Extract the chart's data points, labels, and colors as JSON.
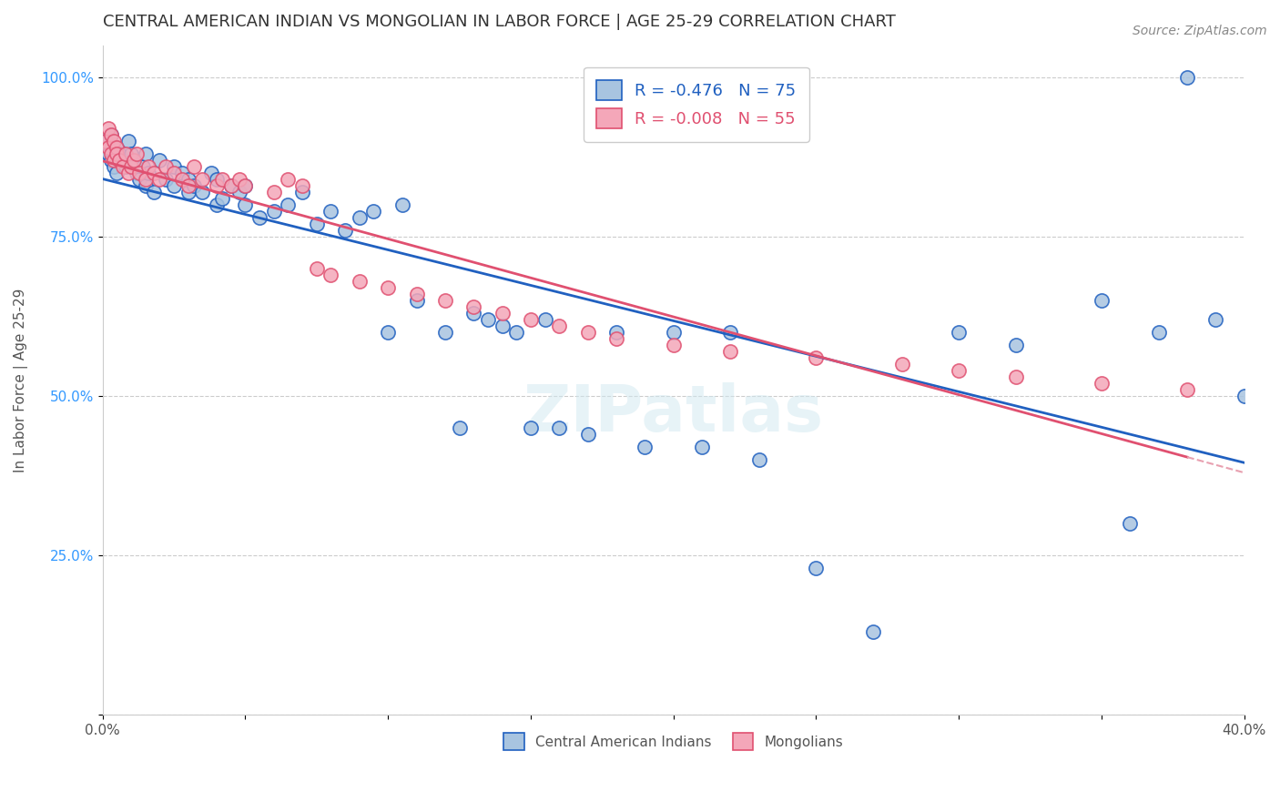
{
  "title": "CENTRAL AMERICAN INDIAN VS MONGOLIAN IN LABOR FORCE | AGE 25-29 CORRELATION CHART",
  "source": "Source: ZipAtlas.com",
  "xlabel_bottom": "",
  "ylabel": "In Labor Force | Age 25-29",
  "xmin": 0.0,
  "xmax": 0.4,
  "ymin": 0.0,
  "ymax": 1.05,
  "yticks": [
    0.0,
    0.25,
    0.5,
    0.75,
    1.0
  ],
  "ytick_labels": [
    "",
    "25.0%",
    "50.0%",
    "75.0%",
    "100.0%"
  ],
  "xticks": [
    0.0,
    0.05,
    0.1,
    0.15,
    0.2,
    0.25,
    0.3,
    0.35,
    0.4
  ],
  "xtick_labels": [
    "0.0%",
    "",
    "",
    "",
    "",
    "",
    "",
    "",
    "40.0%"
  ],
  "blue_r": -0.476,
  "blue_n": 75,
  "pink_r": -0.008,
  "pink_n": 55,
  "blue_color": "#a8c4e0",
  "pink_color": "#f4a7b9",
  "blue_line_color": "#2060c0",
  "pink_line_color": "#e05070",
  "pink_dash_color": "#e8a0b0",
  "legend_blue_label": "Central American Indians",
  "legend_pink_label": "Mongolians",
  "blue_x": [
    0.001,
    0.002,
    0.003,
    0.003,
    0.004,
    0.005,
    0.005,
    0.006,
    0.007,
    0.008,
    0.009,
    0.01,
    0.01,
    0.012,
    0.013,
    0.014,
    0.015,
    0.015,
    0.016,
    0.018,
    0.02,
    0.022,
    0.025,
    0.025,
    0.028,
    0.03,
    0.03,
    0.032,
    0.035,
    0.038,
    0.04,
    0.04,
    0.042,
    0.045,
    0.048,
    0.05,
    0.05,
    0.055,
    0.06,
    0.065,
    0.07,
    0.075,
    0.08,
    0.085,
    0.09,
    0.095,
    0.1,
    0.105,
    0.11,
    0.12,
    0.125,
    0.13,
    0.135,
    0.14,
    0.145,
    0.15,
    0.155,
    0.16,
    0.17,
    0.18,
    0.19,
    0.2,
    0.21,
    0.22,
    0.23,
    0.25,
    0.27,
    0.3,
    0.32,
    0.35,
    0.36,
    0.37,
    0.38,
    0.39,
    0.4
  ],
  "blue_y": [
    0.9,
    0.88,
    0.91,
    0.87,
    0.86,
    0.89,
    0.85,
    0.88,
    0.87,
    0.86,
    0.9,
    0.87,
    0.88,
    0.85,
    0.84,
    0.86,
    0.83,
    0.88,
    0.85,
    0.82,
    0.87,
    0.84,
    0.86,
    0.83,
    0.85,
    0.84,
    0.82,
    0.83,
    0.82,
    0.85,
    0.8,
    0.84,
    0.81,
    0.83,
    0.82,
    0.8,
    0.83,
    0.78,
    0.79,
    0.8,
    0.82,
    0.77,
    0.79,
    0.76,
    0.78,
    0.79,
    0.6,
    0.8,
    0.65,
    0.6,
    0.45,
    0.63,
    0.62,
    0.61,
    0.6,
    0.45,
    0.62,
    0.45,
    0.44,
    0.6,
    0.42,
    0.6,
    0.42,
    0.6,
    0.4,
    0.23,
    0.13,
    0.6,
    0.58,
    0.65,
    0.3,
    0.6,
    1.0,
    0.62,
    0.5
  ],
  "pink_x": [
    0.001,
    0.002,
    0.002,
    0.003,
    0.003,
    0.004,
    0.004,
    0.005,
    0.005,
    0.006,
    0.007,
    0.008,
    0.009,
    0.01,
    0.011,
    0.012,
    0.013,
    0.015,
    0.016,
    0.018,
    0.02,
    0.022,
    0.025,
    0.028,
    0.03,
    0.032,
    0.035,
    0.04,
    0.042,
    0.045,
    0.048,
    0.05,
    0.06,
    0.065,
    0.07,
    0.075,
    0.08,
    0.09,
    0.1,
    0.11,
    0.12,
    0.13,
    0.14,
    0.15,
    0.16,
    0.17,
    0.18,
    0.2,
    0.22,
    0.25,
    0.28,
    0.3,
    0.32,
    0.35,
    0.38
  ],
  "pink_y": [
    0.9,
    0.92,
    0.89,
    0.91,
    0.88,
    0.9,
    0.87,
    0.89,
    0.88,
    0.87,
    0.86,
    0.88,
    0.85,
    0.86,
    0.87,
    0.88,
    0.85,
    0.84,
    0.86,
    0.85,
    0.84,
    0.86,
    0.85,
    0.84,
    0.83,
    0.86,
    0.84,
    0.83,
    0.84,
    0.83,
    0.84,
    0.83,
    0.82,
    0.84,
    0.83,
    0.7,
    0.69,
    0.68,
    0.67,
    0.66,
    0.65,
    0.64,
    0.63,
    0.62,
    0.61,
    0.6,
    0.59,
    0.58,
    0.57,
    0.56,
    0.55,
    0.54,
    0.53,
    0.52,
    0.51
  ]
}
